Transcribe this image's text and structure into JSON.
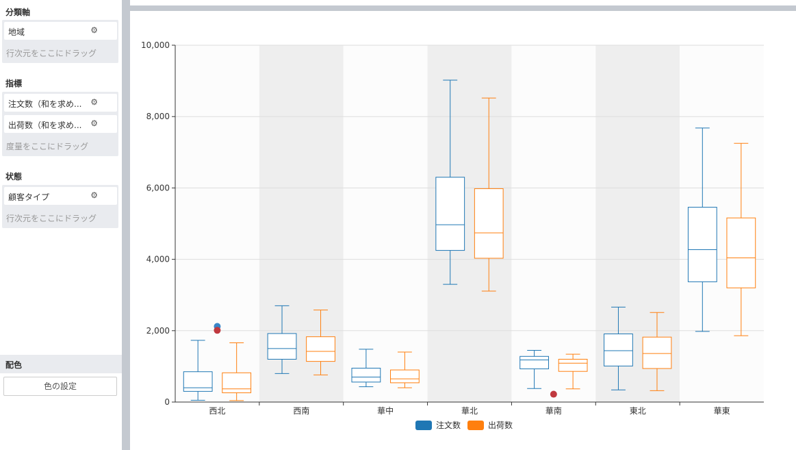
{
  "sidebar": {
    "category_axis": {
      "title": "分類軸",
      "fields": [
        {
          "label": "地域"
        }
      ],
      "drop_hint": "行次元をここにドラッグ"
    },
    "metrics": {
      "title": "指標",
      "fields": [
        {
          "label": "注文数（和を求め..."
        },
        {
          "label": "出荷数（和を求め..."
        }
      ],
      "drop_hint": "度量をここにドラッグ"
    },
    "state": {
      "title": "状態",
      "fields": [
        {
          "label": "顧客タイプ"
        }
      ],
      "drop_hint": "行次元をここにドラッグ"
    },
    "color": {
      "title": "配色",
      "button": "色の設定"
    }
  },
  "icons": {
    "field_settings": "gear-icon"
  },
  "colors": {
    "series1": "#1f77b4",
    "series2": "#ff7f0e",
    "outlier": "#c0393f",
    "band": "#eeeeee"
  },
  "chart_data": {
    "type": "boxplot",
    "categories": [
      "西北",
      "西南",
      "華中",
      "華北",
      "華南",
      "東北",
      "華東"
    ],
    "ylim": [
      0,
      10000
    ],
    "yticks": [
      "0",
      "2,000",
      "4,000",
      "6,000",
      "8,000",
      "10,000"
    ],
    "grid": true,
    "legend_position": "bottom",
    "series": [
      {
        "name": "注文数",
        "boxes": [
          {
            "min": 50,
            "q1": 300,
            "median": 400,
            "q3": 850,
            "max": 1730
          },
          {
            "min": 800,
            "q1": 1200,
            "median": 1500,
            "q3": 1920,
            "max": 2700
          },
          {
            "min": 430,
            "q1": 560,
            "median": 700,
            "q3": 950,
            "max": 1480
          },
          {
            "min": 3300,
            "q1": 4250,
            "median": 4970,
            "q3": 6300,
            "max": 9020
          },
          {
            "min": 380,
            "q1": 930,
            "median": 1180,
            "q3": 1280,
            "max": 1450
          },
          {
            "min": 340,
            "q1": 1010,
            "median": 1440,
            "q3": 1910,
            "max": 2660
          },
          {
            "min": 1980,
            "q1": 3370,
            "median": 4270,
            "q3": 5460,
            "max": 7680
          }
        ],
        "outliers": [
          {
            "category": "西北",
            "value": 2120
          }
        ]
      },
      {
        "name": "出荷数",
        "boxes": [
          {
            "min": 40,
            "q1": 260,
            "median": 370,
            "q3": 820,
            "max": 1660
          },
          {
            "min": 760,
            "q1": 1140,
            "median": 1420,
            "q3": 1830,
            "max": 2580
          },
          {
            "min": 400,
            "q1": 540,
            "median": 650,
            "q3": 900,
            "max": 1400
          },
          {
            "min": 3110,
            "q1": 4030,
            "median": 4740,
            "q3": 5980,
            "max": 8520
          },
          {
            "min": 370,
            "q1": 860,
            "median": 1090,
            "q3": 1200,
            "max": 1340
          },
          {
            "min": 320,
            "q1": 940,
            "median": 1360,
            "q3": 1820,
            "max": 2510
          },
          {
            "min": 1860,
            "q1": 3200,
            "median": 4040,
            "q3": 5160,
            "max": 7250
          }
        ],
        "outliers": [
          {
            "category": "西北",
            "value": 2010
          },
          {
            "category": "華南",
            "value": 220
          }
        ]
      }
    ]
  }
}
